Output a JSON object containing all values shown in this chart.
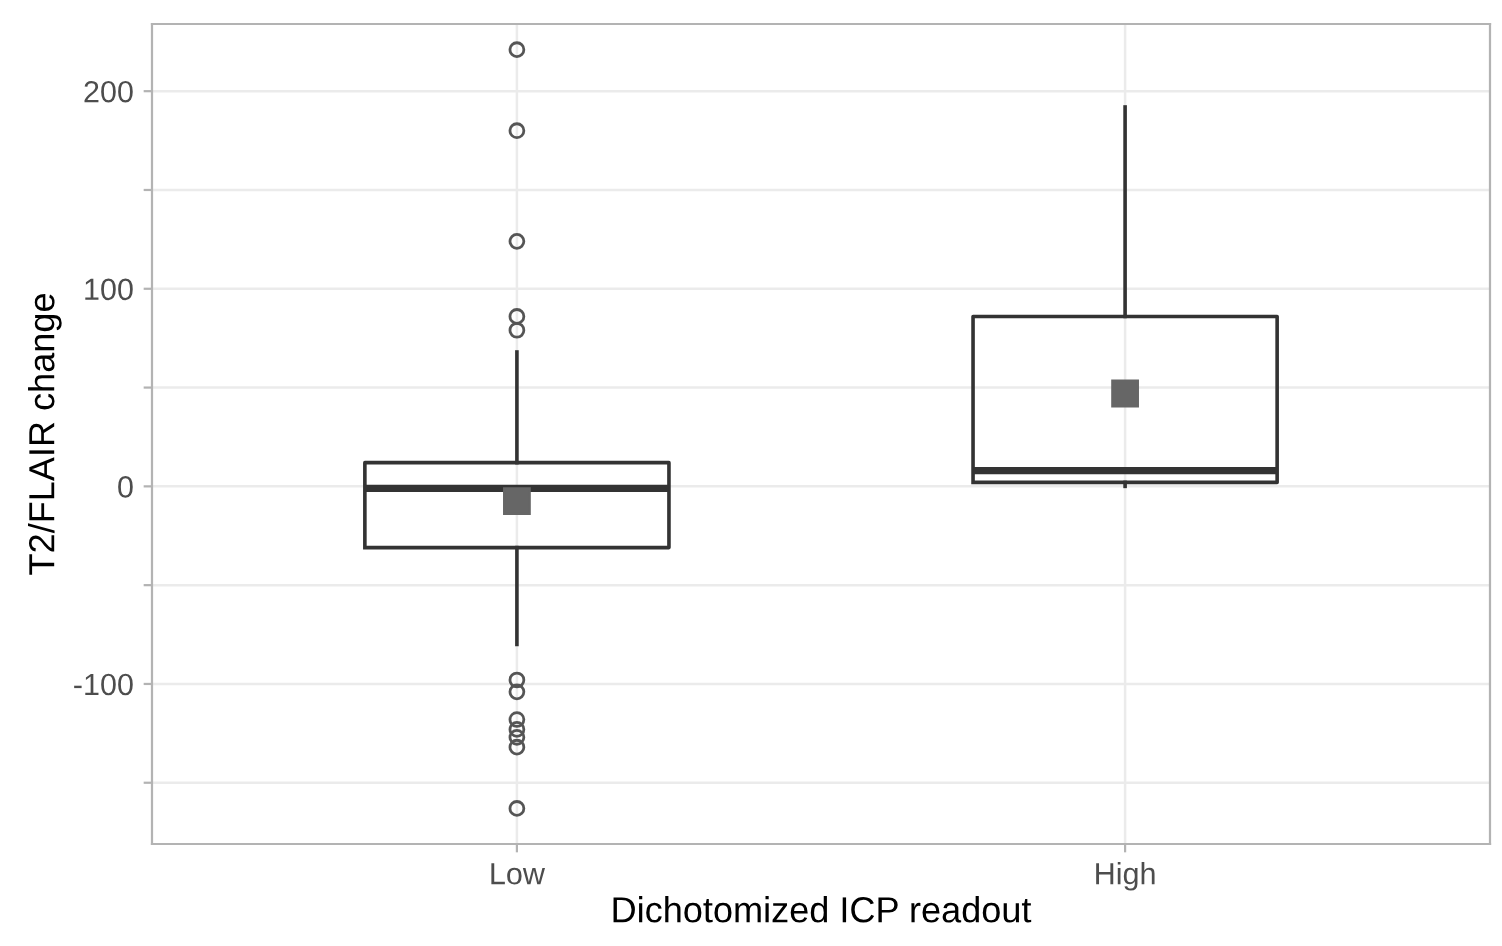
{
  "chart_data": {
    "type": "box",
    "xlabel": "Dichotomized ICP readout",
    "ylabel": "T2/FLAIR change",
    "categories": [
      "Low",
      "High"
    ],
    "boxes": [
      {
        "low": -80,
        "q1": -31,
        "median": -1,
        "q3": 12,
        "high": 68,
        "mean": -7.5,
        "outliers": [
          221,
          180,
          124,
          86,
          79,
          -98,
          -104,
          -118,
          -123,
          -127,
          -132,
          -163
        ]
      },
      {
        "low": 0,
        "q1": 2,
        "median": 8,
        "q3": 86,
        "high": 192,
        "mean": 47
      }
    ],
    "color": "#333333",
    "marker": "square",
    "ylim": [
      -181,
      234
    ],
    "yticks": [
      {
        "value": -150,
        "label": null
      },
      -100,
      {
        "value": -50,
        "label": null
      },
      0,
      {
        "value": 50,
        "label": null
      },
      100,
      {
        "value": 150,
        "label": null
      },
      200
    ],
    "grid": true
  }
}
